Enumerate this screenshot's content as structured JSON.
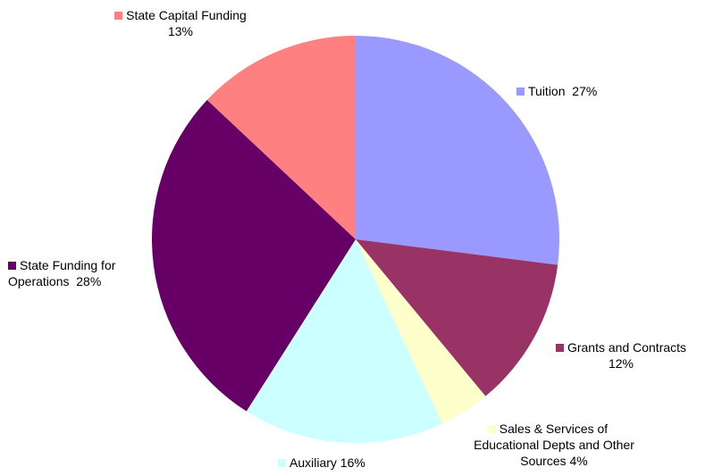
{
  "chart_data": {
    "type": "pie",
    "categories": [
      "Tuition",
      "Grants and Contracts",
      "Sales & Services of Educational Depts and Other Sources",
      "Auxiliary",
      "State Funding for Operations",
      "State Capital Funding"
    ],
    "values": [
      27,
      12,
      4,
      16,
      28,
      13
    ],
    "value_labels": [
      "27%",
      "12%",
      "4%",
      "16%",
      "28%",
      "13%"
    ],
    "colors": [
      "#9999ff",
      "#993366",
      "#ffffcc",
      "#ccffff",
      "#660066",
      "#ff8080"
    ]
  }
}
